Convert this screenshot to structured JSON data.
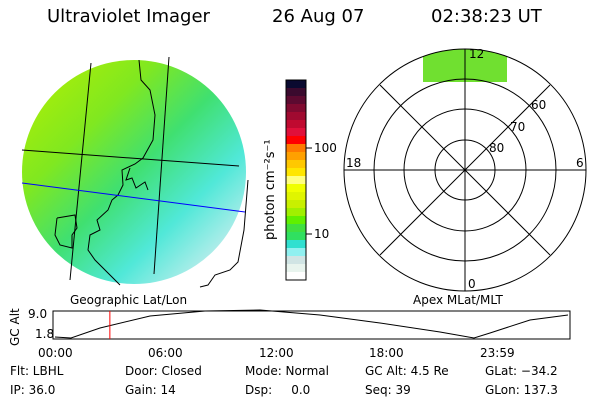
{
  "header": {
    "instrument": "Ultraviolet Imager",
    "date": "26 Aug 07",
    "time": "02:38:23 UT"
  },
  "colorbar": {
    "label": "photon cm⁻²s⁻¹",
    "ticks": [
      "100",
      "10"
    ],
    "colors": [
      "#0a0a30",
      "#3a0a2e",
      "#5c0a30",
      "#800a30",
      "#a00a30",
      "#c00a30",
      "#e0103a",
      "#ff0000",
      "#ff7a00",
      "#ffa000",
      "#ffc800",
      "#ffe600",
      "#ffff80",
      "#f0ff00",
      "#e0f500",
      "#c8f000",
      "#a0f000",
      "#60f000",
      "#40e040",
      "#30e060",
      "#30e0d0",
      "#90f0f0",
      "#d0e4e4",
      "#e8f4ee",
      "#ffffff"
    ]
  },
  "left_panel": {
    "label": "Geographic Lat/Lon"
  },
  "right_panel": {
    "label": "Apex MLat/MLT",
    "rings": [
      "80",
      "70",
      "60"
    ],
    "mlt": {
      "top": "12",
      "left": "18",
      "right": "6",
      "bottom": "0"
    }
  },
  "timeline": {
    "ylabel": "GC Alt",
    "yticks": [
      "9.0",
      "1.8"
    ],
    "xticks": [
      "00:00",
      "06:00",
      "12:00",
      "18:00",
      "23:59"
    ],
    "current_time_fraction": 0.11
  },
  "status": [
    [
      "Flt: LBHL",
      "IP: 36.0"
    ],
    [
      "Door: Closed",
      "Gain: 14"
    ],
    [
      "Mode: Normal",
      "Dsp:     0.0"
    ],
    [
      "GC Alt: 4.5 Re",
      "Seq: 39"
    ],
    [
      "GLat: −34.2",
      "GLon: 137.3"
    ]
  ],
  "colors": {
    "marker": "#ff0000",
    "grid_blue": "#0000ff"
  }
}
